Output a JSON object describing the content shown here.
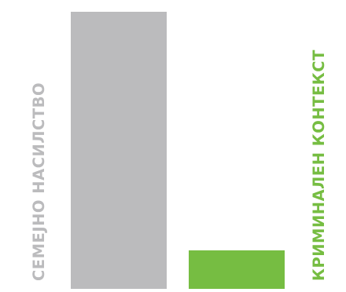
{
  "chart_data": {
    "type": "bar",
    "categories": [
      "СЕМЕЈНО НАСИЛСТВО",
      "КРИМИНАЛЕН КОНТЕКСТ"
    ],
    "values": [
      100,
      13.9
    ],
    "ylim": [
      0,
      100
    ],
    "colors": [
      "#bbbbbd",
      "#76bd42"
    ],
    "label_colors": [
      "#bbbbbd",
      "#76bd42"
    ],
    "grid": false,
    "legend": "none",
    "title": "",
    "xlabel": "",
    "ylabel": ""
  }
}
